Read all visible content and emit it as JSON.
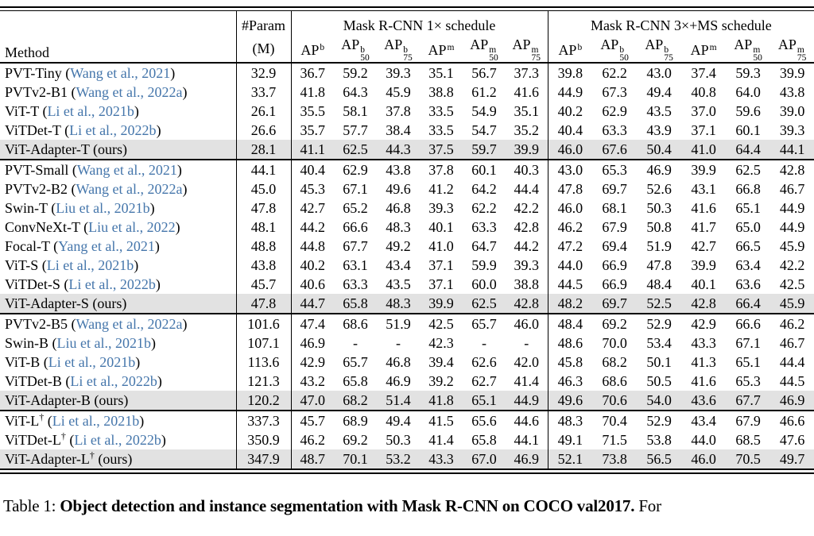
{
  "colors": {
    "citation": "#4576ab",
    "highlight": "#e2e2e2"
  },
  "punct": {
    "open": "(",
    "close": ")"
  },
  "table": {
    "header": {
      "method_label": "Method",
      "param_line1": "#Param",
      "param_line2": "(M)",
      "schedule1": "Mask R-CNN 1× schedule",
      "schedule2": "Mask R-CNN 3×+MS schedule",
      "ap_base": "AP",
      "ap_columns": [
        {
          "sup": "b",
          "sub": ""
        },
        {
          "sup": "b",
          "sub": "50"
        },
        {
          "sup": "b",
          "sub": "75"
        },
        {
          "sup": "m",
          "sub": ""
        },
        {
          "sup": "m",
          "sub": "50"
        },
        {
          "sup": "m",
          "sub": "75"
        }
      ]
    },
    "groups": [
      {
        "rows": [
          {
            "method": "PVT-Tiny",
            "dagger": false,
            "cite": "Wang et al., 2021",
            "ours": false,
            "param": "32.9",
            "s1": [
              "36.7",
              "59.2",
              "39.3",
              "35.1",
              "56.7",
              "37.3"
            ],
            "s3": [
              "39.8",
              "62.2",
              "43.0",
              "37.4",
              "59.3",
              "39.9"
            ]
          },
          {
            "method": "PVTv2-B1",
            "dagger": false,
            "cite": "Wang et al., 2022a",
            "ours": false,
            "param": "33.7",
            "s1": [
              "41.8",
              "64.3",
              "45.9",
              "38.8",
              "61.2",
              "41.6"
            ],
            "s3": [
              "44.9",
              "67.3",
              "49.4",
              "40.8",
              "64.0",
              "43.8"
            ]
          },
          {
            "method": "ViT-T",
            "dagger": false,
            "cite": "Li et al., 2021b",
            "ours": false,
            "param": "26.1",
            "s1": [
              "35.5",
              "58.1",
              "37.8",
              "33.5",
              "54.9",
              "35.1"
            ],
            "s3": [
              "40.2",
              "62.9",
              "43.5",
              "37.0",
              "59.6",
              "39.0"
            ]
          },
          {
            "method": "ViTDet-T",
            "dagger": false,
            "cite": "Li et al., 2022b",
            "ours": false,
            "param": "26.6",
            "s1": [
              "35.7",
              "57.7",
              "38.4",
              "33.5",
              "54.7",
              "35.2"
            ],
            "s3": [
              "40.4",
              "63.3",
              "43.9",
              "37.1",
              "60.1",
              "39.3"
            ]
          },
          {
            "method": "ViT-Adapter-T",
            "dagger": false,
            "plain": "ours",
            "ours": true,
            "param": "28.1",
            "s1": [
              "41.1",
              "62.5",
              "44.3",
              "37.5",
              "59.7",
              "39.9"
            ],
            "s3": [
              "46.0",
              "67.6",
              "50.4",
              "41.0",
              "64.4",
              "44.1"
            ]
          }
        ]
      },
      {
        "rows": [
          {
            "method": "PVT-Small",
            "dagger": false,
            "cite": "Wang et al., 2021",
            "ours": false,
            "param": "44.1",
            "s1": [
              "40.4",
              "62.9",
              "43.8",
              "37.8",
              "60.1",
              "40.3"
            ],
            "s3": [
              "43.0",
              "65.3",
              "46.9",
              "39.9",
              "62.5",
              "42.8"
            ]
          },
          {
            "method": "PVTv2-B2",
            "dagger": false,
            "cite": "Wang et al., 2022a",
            "ours": false,
            "param": "45.0",
            "s1": [
              "45.3",
              "67.1",
              "49.6",
              "41.2",
              "64.2",
              "44.4"
            ],
            "s3": [
              "47.8",
              "69.7",
              "52.6",
              "43.1",
              "66.8",
              "46.7"
            ]
          },
          {
            "method": "Swin-T",
            "dagger": false,
            "cite": "Liu et al., 2021b",
            "ours": false,
            "param": "47.8",
            "s1": [
              "42.7",
              "65.2",
              "46.8",
              "39.3",
              "62.2",
              "42.2"
            ],
            "s3": [
              "46.0",
              "68.1",
              "50.3",
              "41.6",
              "65.1",
              "44.9"
            ]
          },
          {
            "method": "ConvNeXt-T",
            "dagger": false,
            "cite": "Liu et al., 2022",
            "ours": false,
            "param": "48.1",
            "s1": [
              "44.2",
              "66.6",
              "48.3",
              "40.1",
              "63.3",
              "42.8"
            ],
            "s3": [
              "46.2",
              "67.9",
              "50.8",
              "41.7",
              "65.0",
              "44.9"
            ]
          },
          {
            "method": "Focal-T",
            "dagger": false,
            "cite": "Yang et al., 2021",
            "ours": false,
            "param": "48.8",
            "s1": [
              "44.8",
              "67.7",
              "49.2",
              "41.0",
              "64.7",
              "44.2"
            ],
            "s3": [
              "47.2",
              "69.4",
              "51.9",
              "42.7",
              "66.5",
              "45.9"
            ]
          },
          {
            "method": "ViT-S",
            "dagger": false,
            "cite": "Li et al., 2021b",
            "ours": false,
            "param": "43.8",
            "s1": [
              "40.2",
              "63.1",
              "43.4",
              "37.1",
              "59.9",
              "39.3"
            ],
            "s3": [
              "44.0",
              "66.9",
              "47.8",
              "39.9",
              "63.4",
              "42.2"
            ]
          },
          {
            "method": "ViTDet-S",
            "dagger": false,
            "cite": "Li et al., 2022b",
            "ours": false,
            "param": "45.7",
            "s1": [
              "40.6",
              "63.3",
              "43.5",
              "37.1",
              "60.0",
              "38.8"
            ],
            "s3": [
              "44.5",
              "66.9",
              "48.4",
              "40.1",
              "63.6",
              "42.5"
            ]
          },
          {
            "method": "ViT-Adapter-S",
            "dagger": false,
            "plain": "ours",
            "ours": true,
            "param": "47.8",
            "s1": [
              "44.7",
              "65.8",
              "48.3",
              "39.9",
              "62.5",
              "42.8"
            ],
            "s3": [
              "48.2",
              "69.7",
              "52.5",
              "42.8",
              "66.4",
              "45.9"
            ]
          }
        ]
      },
      {
        "rows": [
          {
            "method": "PVTv2-B5",
            "dagger": false,
            "cite": "Wang et al., 2022a",
            "ours": false,
            "param": "101.6",
            "s1": [
              "47.4",
              "68.6",
              "51.9",
              "42.5",
              "65.7",
              "46.0"
            ],
            "s3": [
              "48.4",
              "69.2",
              "52.9",
              "42.9",
              "66.6",
              "46.2"
            ]
          },
          {
            "method": "Swin-B",
            "dagger": false,
            "cite": "Liu et al., 2021b",
            "ours": false,
            "param": "107.1",
            "s1": [
              "46.9",
              "-",
              "-",
              "42.3",
              "-",
              "-"
            ],
            "s3": [
              "48.6",
              "70.0",
              "53.4",
              "43.3",
              "67.1",
              "46.7"
            ]
          },
          {
            "method": "ViT-B",
            "dagger": false,
            "cite": "Li et al., 2021b",
            "ours": false,
            "param": "113.6",
            "s1": [
              "42.9",
              "65.7",
              "46.8",
              "39.4",
              "62.6",
              "42.0"
            ],
            "s3": [
              "45.8",
              "68.2",
              "50.1",
              "41.3",
              "65.1",
              "44.4"
            ]
          },
          {
            "method": "ViTDet-B",
            "dagger": false,
            "cite": "Li et al., 2022b",
            "ours": false,
            "param": "121.3",
            "s1": [
              "43.2",
              "65.8",
              "46.9",
              "39.2",
              "62.7",
              "41.4"
            ],
            "s3": [
              "46.3",
              "68.6",
              "50.5",
              "41.6",
              "65.3",
              "44.5"
            ]
          },
          {
            "method": "ViT-Adapter-B",
            "dagger": false,
            "plain": "ours",
            "ours": true,
            "param": "120.2",
            "s1": [
              "47.0",
              "68.2",
              "51.4",
              "41.8",
              "65.1",
              "44.9"
            ],
            "s3": [
              "49.6",
              "70.6",
              "54.0",
              "43.6",
              "67.7",
              "46.9"
            ]
          }
        ]
      },
      {
        "rows": [
          {
            "method": "ViT-L",
            "dagger": true,
            "cite": "Li et al., 2021b",
            "ours": false,
            "param": "337.3",
            "s1": [
              "45.7",
              "68.9",
              "49.4",
              "41.5",
              "65.6",
              "44.6"
            ],
            "s3": [
              "48.3",
              "70.4",
              "52.9",
              "43.4",
              "67.9",
              "46.6"
            ]
          },
          {
            "method": "ViTDet-L",
            "dagger": true,
            "cite": "Li et al., 2022b",
            "ours": false,
            "param": "350.9",
            "s1": [
              "46.2",
              "69.2",
              "50.3",
              "41.4",
              "65.8",
              "44.1"
            ],
            "s3": [
              "49.1",
              "71.5",
              "53.8",
              "44.0",
              "68.5",
              "47.6"
            ]
          },
          {
            "method": "ViT-Adapter-L",
            "dagger": true,
            "plain": "ours",
            "ours": true,
            "param": "347.9",
            "s1": [
              "48.7",
              "70.1",
              "53.2",
              "43.3",
              "67.0",
              "46.9"
            ],
            "s3": [
              "52.1",
              "73.8",
              "56.5",
              "46.0",
              "70.5",
              "49.7"
            ]
          }
        ]
      }
    ]
  },
  "caption": {
    "prefix": "Table 1: ",
    "bold": "Object detection and instance segmentation with Mask R-CNN on COCO val2017.",
    "suffix": " For"
  },
  "symbols": {
    "dagger": "†"
  }
}
